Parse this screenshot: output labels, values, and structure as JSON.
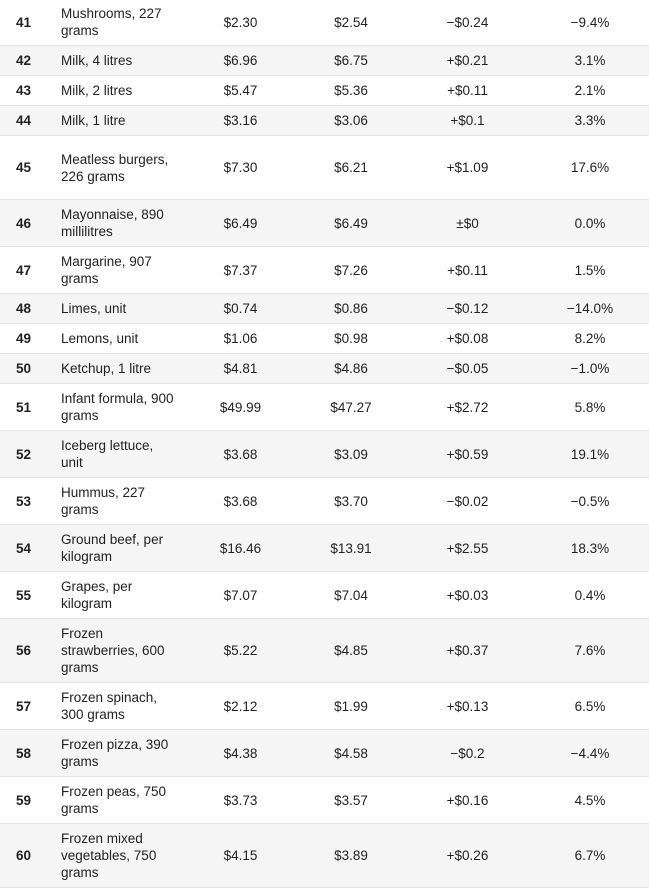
{
  "table": {
    "rows": [
      {
        "rank": "41",
        "item": "Mushrooms, 227 grams",
        "price_a": "$2.30",
        "price_b": "$2.54",
        "change": "−$0.24",
        "pct": "−9.4%"
      },
      {
        "rank": "42",
        "item": "Milk, 4 litres",
        "price_a": "$6.96",
        "price_b": "$6.75",
        "change": "+$0.21",
        "pct": "3.1%"
      },
      {
        "rank": "43",
        "item": "Milk, 2 litres",
        "price_a": "$5.47",
        "price_b": "$5.36",
        "change": "+$0.11",
        "pct": "2.1%"
      },
      {
        "rank": "44",
        "item": "Milk, 1 litre",
        "price_a": "$3.16",
        "price_b": "$3.06",
        "change": "+$0.1",
        "pct": "3.3%"
      },
      {
        "rank": "45",
        "item": "Meatless burgers, 226 grams",
        "price_a": "$7.30",
        "price_b": "$6.21",
        "change": "+$1.09",
        "pct": "17.6%"
      },
      {
        "rank": "46",
        "item": "Mayonnaise, 890 millilitres",
        "price_a": "$6.49",
        "price_b": "$6.49",
        "change": "±$0",
        "pct": "0.0%"
      },
      {
        "rank": "47",
        "item": "Margarine, 907 grams",
        "price_a": "$7.37",
        "price_b": "$7.26",
        "change": "+$0.11",
        "pct": "1.5%"
      },
      {
        "rank": "48",
        "item": "Limes, unit",
        "price_a": "$0.74",
        "price_b": "$0.86",
        "change": "−$0.12",
        "pct": "−14.0%"
      },
      {
        "rank": "49",
        "item": "Lemons, unit",
        "price_a": "$1.06",
        "price_b": "$0.98",
        "change": "+$0.08",
        "pct": "8.2%"
      },
      {
        "rank": "50",
        "item": "Ketchup, 1 litre",
        "price_a": "$4.81",
        "price_b": "$4.86",
        "change": "−$0.05",
        "pct": "−1.0%"
      },
      {
        "rank": "51",
        "item": "Infant formula, 900 grams",
        "price_a": "$49.99",
        "price_b": "$47.27",
        "change": "+$2.72",
        "pct": "5.8%"
      },
      {
        "rank": "52",
        "item": "Iceberg lettuce, unit",
        "price_a": "$3.68",
        "price_b": "$3.09",
        "change": "+$0.59",
        "pct": "19.1%"
      },
      {
        "rank": "53",
        "item": "Hummus, 227 grams",
        "price_a": "$3.68",
        "price_b": "$3.70",
        "change": "−$0.02",
        "pct": "−0.5%"
      },
      {
        "rank": "54",
        "item": "Ground beef, per kilogram",
        "price_a": "$16.46",
        "price_b": "$13.91",
        "change": "+$2.55",
        "pct": "18.3%"
      },
      {
        "rank": "55",
        "item": "Grapes, per kilogram",
        "price_a": "$7.07",
        "price_b": "$7.04",
        "change": "+$0.03",
        "pct": "0.4%"
      },
      {
        "rank": "56",
        "item": "Frozen strawberries, 600 grams",
        "price_a": "$5.22",
        "price_b": "$4.85",
        "change": "+$0.37",
        "pct": "7.6%"
      },
      {
        "rank": "57",
        "item": "Frozen spinach, 300 grams",
        "price_a": "$2.12",
        "price_b": "$1.99",
        "change": "+$0.13",
        "pct": "6.5%"
      },
      {
        "rank": "58",
        "item": "Frozen pizza, 390 grams",
        "price_a": "$4.38",
        "price_b": "$4.58",
        "change": "−$0.2",
        "pct": "−4.4%"
      },
      {
        "rank": "59",
        "item": "Frozen peas, 750 grams",
        "price_a": "$3.73",
        "price_b": "$3.57",
        "change": "+$0.16",
        "pct": "4.5%"
      },
      {
        "rank": "60",
        "item": "Frozen mixed vegetables, 750 grams",
        "price_a": "$4.15",
        "price_b": "$3.89",
        "change": "+$0.26",
        "pct": "6.7%"
      }
    ]
  }
}
